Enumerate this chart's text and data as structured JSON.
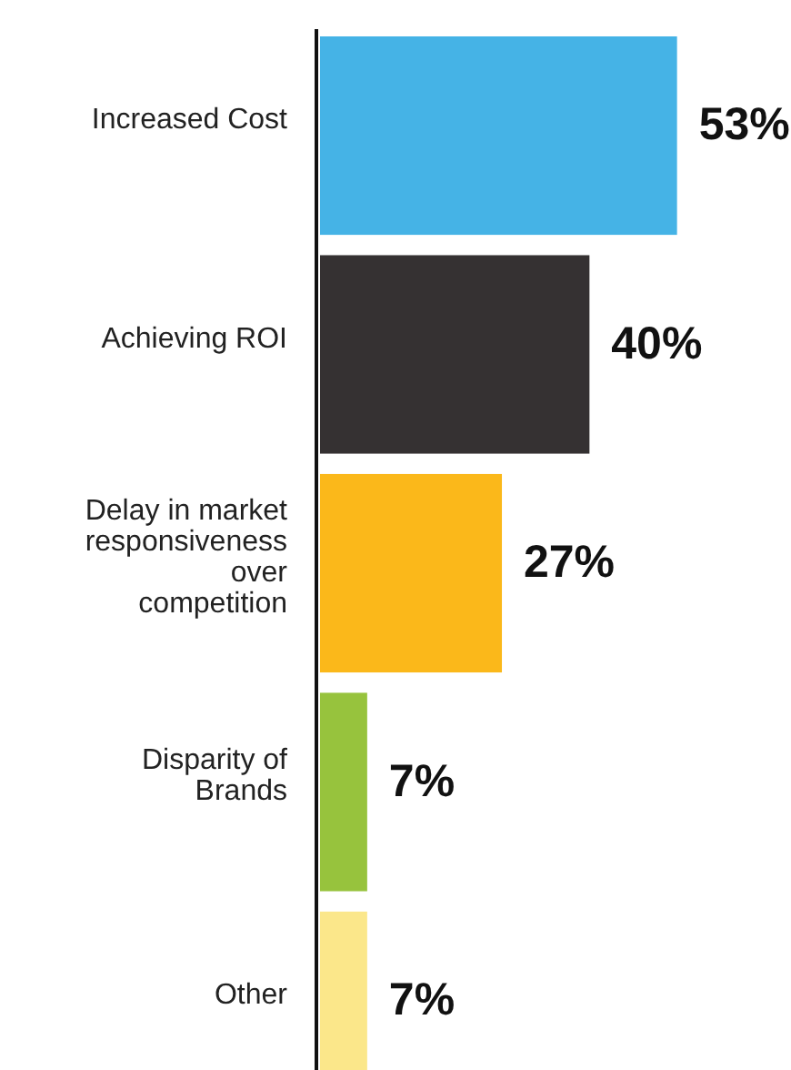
{
  "chart_data": {
    "type": "bar",
    "orientation": "horizontal",
    "data_labels": true,
    "categories": [
      "Increased Cost",
      "Achieving ROI",
      "Delay in market responsiveness over competition",
      "Disparity of Brands",
      "Other"
    ],
    "values": [
      53,
      40,
      27,
      7,
      7
    ],
    "colors": [
      "#45b3e6",
      "#353132",
      "#fbb81a",
      "#97c33d",
      "#fbe78a"
    ],
    "value_labels": [
      "53%",
      "40%",
      "27%",
      "7%",
      "7%"
    ]
  }
}
